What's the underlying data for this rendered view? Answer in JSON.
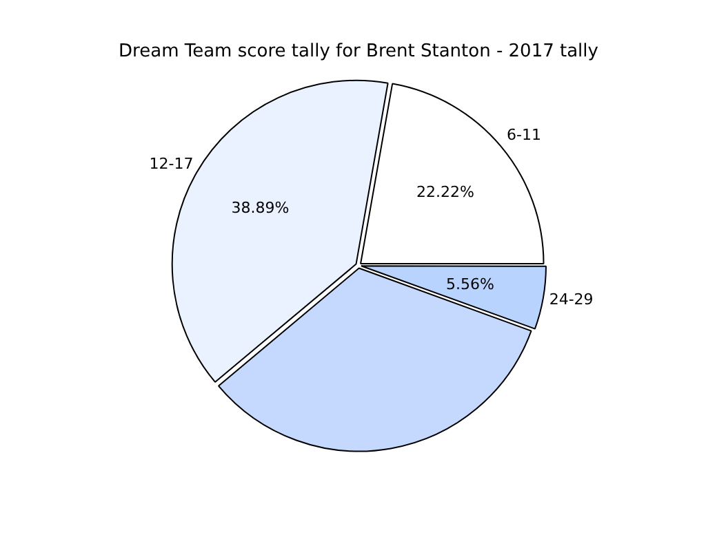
{
  "chart_data": {
    "type": "pie",
    "title": "Dream Team score tally for Brent Stanton - 2017 tally",
    "categories": [
      "6-11",
      "24-29",
      null,
      "12-17"
    ],
    "values": [
      22.22,
      5.56,
      33.33,
      38.89
    ],
    "value_labels": [
      "22.22%",
      "5.56%",
      null,
      "38.89%"
    ],
    "colors": [
      "#ffffff",
      "#b9d3ff",
      "#c5d9ff",
      "#eaf1ff"
    ],
    "legend": false
  }
}
